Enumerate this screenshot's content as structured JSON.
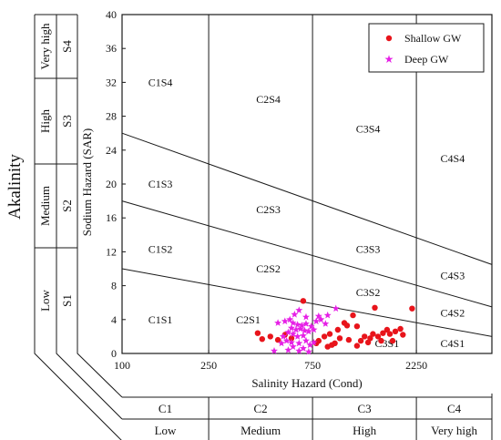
{
  "chart_data": {
    "type": "scatter",
    "title": "",
    "xlabel": "Salinity Hazard (Cond)",
    "ylabel": "Sodium Hazard (SAR)",
    "x_scale": "log",
    "xlim": [
      100,
      5000
    ],
    "ylim": [
      0,
      40
    ],
    "x_ticks": [
      "100",
      "250",
      "750",
      "2250"
    ],
    "y_ticks": [
      "0",
      "4",
      "8",
      "12",
      "16",
      "20",
      "24",
      "28",
      "32",
      "36",
      "40"
    ],
    "grid": false,
    "legend_position": "top-right",
    "boundaries": [
      {
        "name": "S1/S2",
        "points": [
          [
            100,
            10
          ],
          [
            5000,
            2
          ]
        ]
      },
      {
        "name": "S2/S3",
        "points": [
          [
            100,
            18
          ],
          [
            5000,
            5.5
          ]
        ]
      },
      {
        "name": "S3/S4",
        "points": [
          [
            100,
            26
          ],
          [
            5000,
            10.5
          ]
        ]
      }
    ],
    "salinity_dividers": [
      250,
      750,
      2250
    ],
    "zone_labels": [
      {
        "text": "C1S4",
        "x": 150,
        "y": 32
      },
      {
        "text": "C2S4",
        "x": 470,
        "y": 30
      },
      {
        "text": "C3S4",
        "x": 1350,
        "y": 26.5
      },
      {
        "text": "C4S4",
        "x": 3300,
        "y": 23
      },
      {
        "text": "C1S3",
        "x": 150,
        "y": 20
      },
      {
        "text": "C2S3",
        "x": 470,
        "y": 17
      },
      {
        "text": "C3S3",
        "x": 1350,
        "y": 12.3
      },
      {
        "text": "C4S3",
        "x": 3300,
        "y": 9.2
      },
      {
        "text": "C1S2",
        "x": 150,
        "y": 12.3
      },
      {
        "text": "C2S2",
        "x": 470,
        "y": 10
      },
      {
        "text": "C3S2",
        "x": 1350,
        "y": 7.2
      },
      {
        "text": "C4S2",
        "x": 3300,
        "y": 4.8
      },
      {
        "text": "C1S1",
        "x": 150,
        "y": 4
      },
      {
        "text": "C2S1",
        "x": 380,
        "y": 4
      },
      {
        "text": "C3S1",
        "x": 1650,
        "y": 1.2
      },
      {
        "text": "C4S1",
        "x": 3300,
        "y": 1.2
      }
    ],
    "series": [
      {
        "name": "Shallow GW",
        "marker": "circle",
        "color": "#e8141b",
        "points": [
          [
            680,
            6.2
          ],
          [
            2150,
            5.3
          ],
          [
            1450,
            5.4
          ],
          [
            1150,
            4.5
          ],
          [
            1200,
            3.2
          ],
          [
            1050,
            3.6
          ],
          [
            1250,
            1.5
          ],
          [
            1300,
            2.0
          ],
          [
            1380,
            1.8
          ],
          [
            1420,
            2.3
          ],
          [
            1500,
            2.0
          ],
          [
            1580,
            2.4
          ],
          [
            1650,
            2.8
          ],
          [
            1700,
            2.3
          ],
          [
            1800,
            2.6
          ],
          [
            1900,
            2.9
          ],
          [
            1950,
            2.2
          ],
          [
            1750,
            1.5
          ],
          [
            1550,
            1.5
          ],
          [
            1350,
            1.3
          ],
          [
            1100,
            1.6
          ],
          [
            1000,
            1.8
          ],
          [
            950,
            1.2
          ],
          [
            900,
            2.3
          ],
          [
            850,
            2.0
          ],
          [
            800,
            1.5
          ],
          [
            880,
            0.8
          ],
          [
            1200,
            0.9
          ],
          [
            780,
            1.2
          ],
          [
            600,
            1.8
          ],
          [
            560,
            2.2
          ],
          [
            520,
            1.6
          ],
          [
            480,
            2.0
          ],
          [
            440,
            1.7
          ],
          [
            420,
            2.4
          ],
          [
            1080,
            3.3
          ],
          [
            980,
            2.8
          ],
          [
            920,
            1.0
          ]
        ]
      },
      {
        "name": "Deep GW",
        "marker": "star",
        "color": "#e620e6",
        "points": [
          [
            620,
            4.6
          ],
          [
            650,
            5.1
          ],
          [
            700,
            4.3
          ],
          [
            590,
            4.0
          ],
          [
            560,
            3.8
          ],
          [
            520,
            3.6
          ],
          [
            610,
            3.6
          ],
          [
            640,
            3.4
          ],
          [
            670,
            3.3
          ],
          [
            700,
            3.5
          ],
          [
            740,
            3.2
          ],
          [
            600,
            3.0
          ],
          [
            630,
            2.8
          ],
          [
            660,
            2.9
          ],
          [
            690,
            2.7
          ],
          [
            720,
            2.6
          ],
          [
            760,
            2.8
          ],
          [
            580,
            2.5
          ],
          [
            610,
            2.3
          ],
          [
            640,
            2.0
          ],
          [
            680,
            2.1
          ],
          [
            550,
            2.0
          ],
          [
            570,
            1.5
          ],
          [
            600,
            1.3
          ],
          [
            650,
            1.2
          ],
          [
            700,
            1.5
          ],
          [
            730,
            1.0
          ],
          [
            760,
            1.3
          ],
          [
            540,
            1.2
          ],
          [
            610,
            0.8
          ],
          [
            680,
            0.6
          ],
          [
            720,
            0.2
          ],
          [
            500,
            0.3
          ],
          [
            580,
            0.4
          ],
          [
            650,
            0.3
          ],
          [
            820,
            4.0
          ],
          [
            880,
            4.5
          ],
          [
            960,
            5.3
          ],
          [
            780,
            3.8
          ],
          [
            860,
            3.5
          ],
          [
            800,
            4.4
          ]
        ]
      }
    ]
  },
  "left_panel": {
    "title": "Akalinity",
    "bands": [
      {
        "code": "S4",
        "level": "Very high"
      },
      {
        "code": "S3",
        "level": "High"
      },
      {
        "code": "S2",
        "level": "Medium"
      },
      {
        "code": "S1",
        "level": "Low"
      }
    ]
  },
  "bottom_panel": {
    "bands": [
      {
        "code": "C1",
        "level": "Low"
      },
      {
        "code": "C2",
        "level": "Medium"
      },
      {
        "code": "C3",
        "level": "High"
      },
      {
        "code": "C4",
        "level": "Very high"
      }
    ]
  },
  "colors": {
    "shallow": "#e8141b",
    "deep": "#e620e6",
    "frame": "#1a1a1a"
  }
}
